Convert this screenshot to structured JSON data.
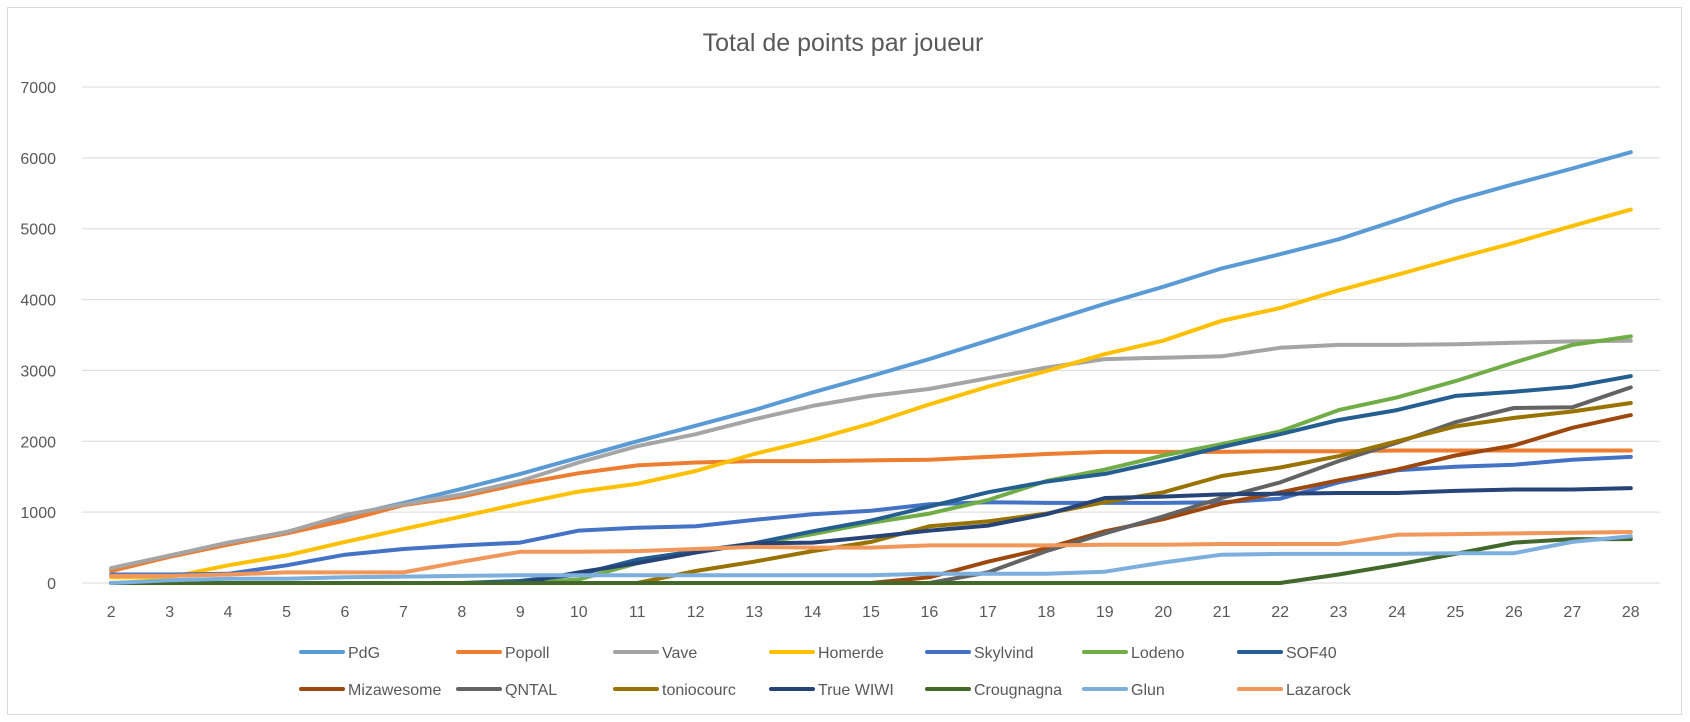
{
  "chart_data": {
    "type": "line",
    "title": "Total de points par joueur",
    "xlabel": "",
    "ylabel": "",
    "x": [
      2,
      3,
      4,
      5,
      6,
      7,
      8,
      9,
      10,
      11,
      12,
      13,
      14,
      15,
      16,
      17,
      18,
      19,
      20,
      21,
      22,
      23,
      24,
      25,
      26,
      27,
      28
    ],
    "ylim": [
      0,
      7000
    ],
    "yticks": [
      0,
      1000,
      2000,
      3000,
      4000,
      5000,
      6000,
      7000
    ],
    "grid": true,
    "legend_position": "bottom",
    "series": [
      {
        "name": "PdG",
        "color": "#5b9bd5",
        "values": [
          200,
          380,
          560,
          720,
          940,
          1130,
          1330,
          1540,
          1770,
          2000,
          2220,
          2440,
          2690,
          2920,
          3160,
          3420,
          3680,
          3940,
          4180,
          4440,
          4640,
          4850,
          5120,
          5400,
          5630,
          5850,
          6080
        ]
      },
      {
        "name": "Popoll",
        "color": "#ed7d31",
        "values": [
          170,
          370,
          540,
          700,
          880,
          1100,
          1220,
          1400,
          1550,
          1660,
          1700,
          1720,
          1720,
          1730,
          1740,
          1780,
          1820,
          1850,
          1850,
          1850,
          1860,
          1860,
          1870,
          1870,
          1870,
          1870,
          1870
        ]
      },
      {
        "name": "Vave",
        "color": "#a5a5a5",
        "values": [
          210,
          390,
          570,
          720,
          960,
          1110,
          1250,
          1440,
          1700,
          1930,
          2100,
          2310,
          2500,
          2640,
          2740,
          2890,
          3040,
          3160,
          3180,
          3200,
          3320,
          3360,
          3360,
          3370,
          3390,
          3410,
          3420
        ]
      },
      {
        "name": "Homerde",
        "color": "#ffc000",
        "values": [
          80,
          80,
          250,
          390,
          580,
          760,
          940,
          1120,
          1290,
          1400,
          1580,
          1820,
          2020,
          2250,
          2520,
          2770,
          2990,
          3230,
          3420,
          3700,
          3880,
          4130,
          4350,
          4580,
          4800,
          5040,
          5270
        ]
      },
      {
        "name": "Skylvind",
        "color": "#4472c4",
        "values": [
          120,
          120,
          130,
          250,
          400,
          480,
          530,
          570,
          740,
          780,
          800,
          890,
          970,
          1020,
          1110,
          1140,
          1130,
          1130,
          1130,
          1140,
          1190,
          1420,
          1590,
          1640,
          1670,
          1740,
          1780
        ]
      },
      {
        "name": "Lodeno",
        "color": "#70ad47",
        "values": [
          0,
          0,
          0,
          0,
          0,
          0,
          0,
          0,
          50,
          280,
          440,
          550,
          690,
          850,
          980,
          1170,
          1440,
          1600,
          1800,
          1960,
          2140,
          2440,
          2620,
          2850,
          3110,
          3360,
          3480
        ]
      },
      {
        "name": "SOF40",
        "color": "#255e91",
        "values": [
          0,
          0,
          0,
          0,
          0,
          0,
          0,
          30,
          120,
          330,
          450,
          560,
          730,
          880,
          1080,
          1280,
          1430,
          1540,
          1720,
          1920,
          2100,
          2300,
          2440,
          2640,
          2700,
          2770,
          2920
        ]
      },
      {
        "name": "Mizawesome",
        "color": "#9e480e",
        "values": [
          0,
          0,
          0,
          0,
          0,
          0,
          0,
          0,
          0,
          0,
          0,
          0,
          0,
          0,
          80,
          300,
          490,
          730,
          900,
          1120,
          1280,
          1450,
          1600,
          1800,
          1940,
          2190,
          2370
        ]
      },
      {
        "name": "QNTAL",
        "color": "#636363",
        "values": [
          0,
          0,
          0,
          0,
          0,
          0,
          0,
          0,
          0,
          0,
          0,
          0,
          0,
          0,
          0,
          150,
          450,
          700,
          940,
          1200,
          1420,
          1720,
          1980,
          2270,
          2470,
          2480,
          2760
        ]
      },
      {
        "name": "toniocourc",
        "color": "#997300",
        "values": [
          0,
          0,
          0,
          0,
          0,
          0,
          0,
          0,
          0,
          0,
          170,
          300,
          450,
          580,
          800,
          870,
          980,
          1140,
          1280,
          1510,
          1630,
          1790,
          2000,
          2210,
          2330,
          2420,
          2540
        ]
      },
      {
        "name": "True WIWI",
        "color": "#264478",
        "values": [
          0,
          0,
          0,
          0,
          0,
          0,
          0,
          0,
          150,
          280,
          430,
          560,
          570,
          650,
          740,
          810,
          970,
          1200,
          1220,
          1250,
          1260,
          1270,
          1270,
          1300,
          1320,
          1320,
          1340
        ]
      },
      {
        "name": "Crougnagna",
        "color": "#43682b",
        "values": [
          0,
          0,
          0,
          0,
          0,
          0,
          0,
          0,
          0,
          0,
          0,
          0,
          0,
          0,
          0,
          0,
          0,
          0,
          0,
          0,
          0,
          120,
          260,
          410,
          570,
          620,
          620
        ]
      },
      {
        "name": "Glun",
        "color": "#7cafdd",
        "values": [
          0,
          40,
          60,
          60,
          80,
          90,
          100,
          110,
          110,
          110,
          110,
          110,
          110,
          110,
          130,
          130,
          130,
          160,
          290,
          400,
          410,
          410,
          410,
          420,
          420,
          580,
          660
        ]
      },
      {
        "name": "Lazarock",
        "color": "#f1975a",
        "values": [
          100,
          100,
          120,
          150,
          150,
          150,
          300,
          440,
          440,
          450,
          480,
          510,
          500,
          500,
          530,
          530,
          530,
          540,
          540,
          550,
          550,
          550,
          680,
          690,
          700,
          710,
          720
        ]
      }
    ]
  }
}
